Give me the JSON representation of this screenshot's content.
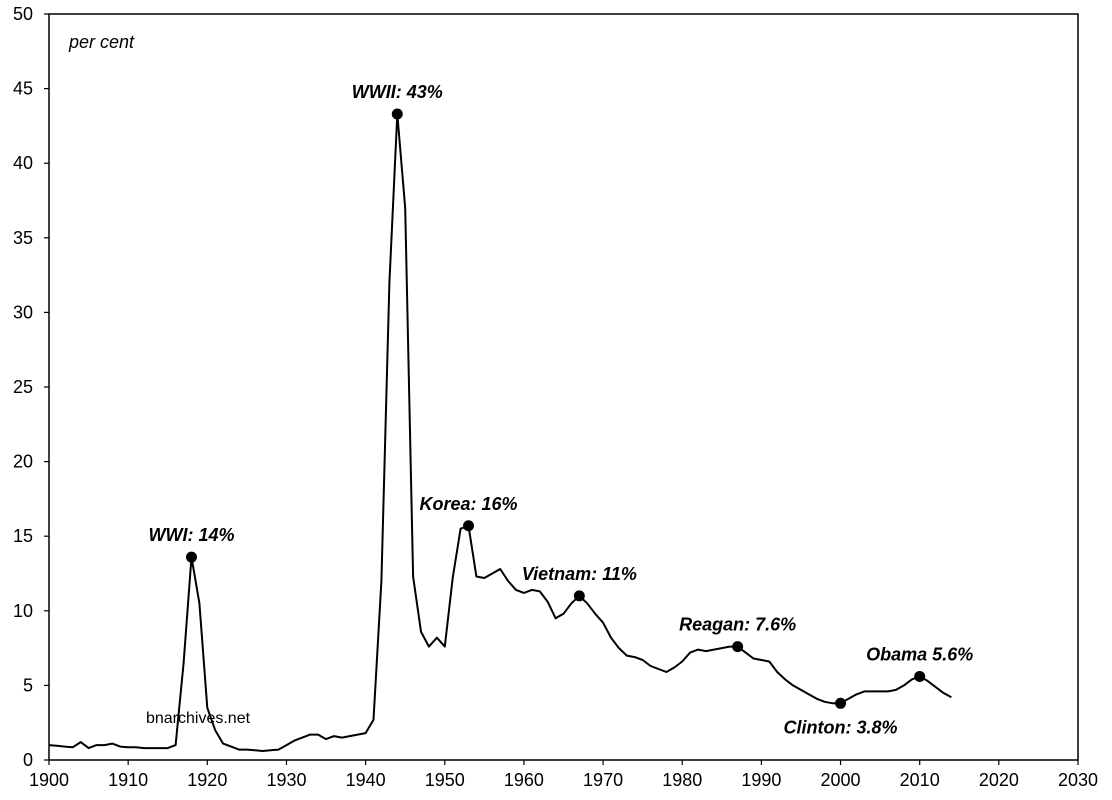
{
  "chart_data": {
    "type": "line",
    "title": "",
    "unit_label": "per cent",
    "watermark": "bnarchives.net",
    "xlim": [
      1900,
      2030
    ],
    "ylim": [
      0,
      50
    ],
    "x_ticks": [
      1900,
      1910,
      1920,
      1930,
      1940,
      1950,
      1960,
      1970,
      1980,
      1990,
      2000,
      2010,
      2020,
      2030
    ],
    "y_ticks": [
      0,
      5,
      10,
      15,
      20,
      25,
      30,
      35,
      40,
      45,
      50
    ],
    "grid": false,
    "line_color": "#000000",
    "series": [
      {
        "x": [
          1900,
          1901,
          1902,
          1903,
          1904,
          1905,
          1906,
          1907,
          1908,
          1909,
          1910,
          1911,
          1912,
          1913,
          1914,
          1915,
          1916,
          1917,
          1918,
          1919,
          1920,
          1921,
          1922,
          1923,
          1924,
          1925,
          1926,
          1927,
          1928,
          1929,
          1930,
          1931,
          1932,
          1933,
          1934,
          1935,
          1936,
          1937,
          1938,
          1939,
          1940,
          1941,
          1942,
          1943,
          1944,
          1945,
          1946,
          1947,
          1948,
          1949,
          1950,
          1951,
          1952,
          1953,
          1954,
          1955,
          1956,
          1957,
          1958,
          1959,
          1960,
          1961,
          1962,
          1963,
          1964,
          1965,
          1966,
          1967,
          1968,
          1969,
          1970,
          1971,
          1972,
          1973,
          1974,
          1975,
          1976,
          1977,
          1978,
          1979,
          1980,
          1981,
          1982,
          1983,
          1984,
          1985,
          1986,
          1987,
          1988,
          1989,
          1990,
          1991,
          1992,
          1993,
          1994,
          1995,
          1996,
          1997,
          1998,
          1999,
          2000,
          2001,
          2002,
          2003,
          2004,
          2005,
          2006,
          2007,
          2008,
          2009,
          2010,
          2011,
          2012,
          2013,
          2014
        ],
        "values": [
          1.0,
          0.95,
          0.9,
          0.85,
          1.2,
          0.8,
          1.0,
          1.0,
          1.1,
          0.9,
          0.85,
          0.85,
          0.8,
          0.8,
          0.8,
          0.8,
          1.0,
          6.5,
          13.6,
          10.5,
          3.5,
          2.0,
          1.1,
          0.9,
          0.7,
          0.7,
          0.65,
          0.6,
          0.65,
          0.7,
          1.0,
          1.3,
          1.5,
          1.7,
          1.7,
          1.4,
          1.6,
          1.5,
          1.6,
          1.7,
          1.8,
          2.7,
          12.0,
          32.0,
          43.3,
          37.0,
          12.3,
          8.6,
          7.6,
          8.2,
          7.6,
          12.2,
          15.5,
          15.7,
          12.3,
          12.2,
          12.5,
          12.8,
          12.0,
          11.4,
          11.2,
          11.4,
          11.3,
          10.6,
          9.5,
          9.8,
          10.5,
          11.0,
          10.5,
          9.8,
          9.2,
          8.2,
          7.5,
          7.0,
          6.9,
          6.7,
          6.3,
          6.1,
          5.9,
          6.2,
          6.6,
          7.2,
          7.4,
          7.3,
          7.4,
          7.5,
          7.6,
          7.6,
          7.2,
          6.8,
          6.7,
          6.6,
          5.9,
          5.4,
          5.0,
          4.7,
          4.4,
          4.1,
          3.9,
          3.8,
          3.8,
          4.1,
          4.4,
          4.6,
          4.6,
          4.6,
          4.6,
          4.7,
          5.0,
          5.4,
          5.6,
          5.3,
          4.9,
          4.5,
          4.2
        ]
      }
    ],
    "annotations": [
      {
        "label": "WWI: 14%",
        "x": 1918,
        "y": 13.6,
        "position": "above"
      },
      {
        "label": "WWII: 43%",
        "x": 1944,
        "y": 43.3,
        "position": "above"
      },
      {
        "label": "Korea: 16%",
        "x": 1953,
        "y": 15.7,
        "position": "above"
      },
      {
        "label": "Vietnam:  11%",
        "x": 1967,
        "y": 11.0,
        "position": "above"
      },
      {
        "label": "Reagan:  7.6%",
        "x": 1987,
        "y": 7.6,
        "position": "above"
      },
      {
        "label": "Clinton:  3.8%",
        "x": 2000,
        "y": 3.8,
        "position": "below"
      },
      {
        "label": "Obama  5.6%",
        "x": 2010,
        "y": 5.6,
        "position": "above"
      }
    ]
  }
}
